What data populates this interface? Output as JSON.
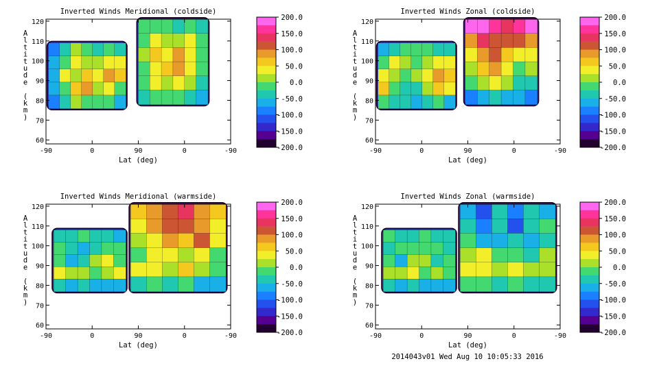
{
  "footer": {
    "stamp": "2014043v01 Wed Aug 10 10:05:33 2016"
  },
  "colorbar": {
    "ticks": [
      "200.0",
      "150.0",
      "100.0",
      "50.0",
      "0.0",
      "-50.0",
      "-100.0",
      "-150.0",
      "-200.0"
    ],
    "colors": [
      "#ff66ee",
      "#ff3399",
      "#e8355f",
      "#cc5533",
      "#e89a2a",
      "#f5c820",
      "#f2ee2a",
      "#aadf2a",
      "#44d870",
      "#20c8b0",
      "#19b0e8",
      "#1a80ff",
      "#2450ee",
      "#3328cc",
      "#550090",
      "#220030"
    ],
    "range": [
      -200,
      200
    ]
  },
  "chart_data": [
    {
      "type": "heatmap",
      "title": "Inverted Winds Meridional (coldside)",
      "xlabel": "Lat (deg)",
      "ylabel": "Altitude (km)",
      "xticks": [
        "-90",
        "0",
        "90",
        "0",
        "-90"
      ],
      "yticks": [
        "60",
        "70",
        "80",
        "90",
        "100",
        "110",
        "120"
      ],
      "ylim": [
        58,
        121
      ],
      "colorbar_range": [
        -200,
        200
      ],
      "panels": [
        {
          "x": [
            -85,
            65
          ],
          "y": [
            76,
            109
          ],
          "values": [
            [
              -80,
              -40,
              10,
              -10,
              -30,
              -20,
              -40
            ],
            [
              -60,
              0,
              40,
              20,
              10,
              40,
              30
            ],
            [
              -50,
              40,
              10,
              60,
              40,
              90,
              60
            ],
            [
              -70,
              0,
              60,
              80,
              20,
              50,
              -20
            ],
            [
              -80,
              -30,
              10,
              0,
              -10,
              -20,
              -50
            ]
          ]
        },
        {
          "x": [
            90,
            -45
          ],
          "y": [
            78,
            121
          ],
          "values": [
            [
              -20,
              0,
              -10,
              -30,
              -20,
              -40
            ],
            [
              0,
              40,
              20,
              10,
              30,
              -10
            ],
            [
              10,
              60,
              50,
              80,
              40,
              0
            ],
            [
              -10,
              50,
              70,
              90,
              30,
              -20
            ],
            [
              0,
              30,
              10,
              50,
              20,
              -30
            ],
            [
              -40,
              -20,
              -10,
              -20,
              -40,
              -60
            ]
          ]
        }
      ]
    },
    {
      "type": "heatmap",
      "title": "Inverted Winds Zonal (coldside)",
      "xlabel": "Lat (deg)",
      "ylabel": "Altitude (km)",
      "xticks": [
        "-90",
        "0",
        "90",
        "0",
        "-90"
      ],
      "yticks": [
        "60",
        "70",
        "80",
        "90",
        "100",
        "110",
        "120"
      ],
      "ylim": [
        58,
        121
      ],
      "colorbar_range": [
        -200,
        200
      ],
      "panels": [
        {
          "x": [
            -85,
            65
          ],
          "y": [
            76,
            109
          ],
          "values": [
            [
              -60,
              -40,
              -20,
              0,
              -10,
              -30,
              -40
            ],
            [
              0,
              30,
              10,
              -20,
              20,
              40,
              30
            ],
            [
              40,
              20,
              -10,
              10,
              50,
              80,
              70
            ],
            [
              60,
              0,
              -30,
              -40,
              10,
              60,
              50
            ],
            [
              -20,
              -40,
              -30,
              -60,
              -40,
              -20,
              -50
            ]
          ]
        },
        {
          "x": [
            95,
            -45
          ],
          "y": [
            78,
            121
          ],
          "values": [
            [
              200,
              180,
              160,
              150,
              170,
              180
            ],
            [
              100,
              130,
              120,
              110,
              120,
              90
            ],
            [
              40,
              90,
              110,
              60,
              30,
              50
            ],
            [
              20,
              60,
              80,
              50,
              0,
              10
            ],
            [
              -20,
              20,
              40,
              10,
              -40,
              -30
            ],
            [
              -80,
              -60,
              -40,
              -50,
              -70,
              -90
            ]
          ]
        }
      ]
    },
    {
      "type": "heatmap",
      "title": "Inverted Winds Meridional (warmside)",
      "xlabel": "Lat (deg)",
      "ylabel": "Altitude (km)",
      "xticks": [
        "-90",
        "0",
        "90",
        "0",
        "-90"
      ],
      "yticks": [
        "60",
        "70",
        "80",
        "90",
        "100",
        "110",
        "120"
      ],
      "ylim": [
        58,
        121
      ],
      "colorbar_range": [
        -200,
        200
      ],
      "panels": [
        {
          "x": [
            -75,
            65
          ],
          "y": [
            77,
            108
          ],
          "values": [
            [
              -40,
              -30,
              -20,
              -30,
              -40,
              -60
            ],
            [
              -20,
              -40,
              -70,
              -30,
              -10,
              -20
            ],
            [
              0,
              -50,
              -30,
              20,
              40,
              -10
            ],
            [
              40,
              20,
              10,
              -20,
              10,
              30
            ],
            [
              -30,
              -50,
              -40,
              -60,
              -50,
              -70
            ]
          ]
        },
        {
          "x": [
            105,
            -80
          ],
          "y": [
            77,
            121
          ],
          "values": [
            [
              60,
              90,
              120,
              130,
              100,
              60
            ],
            [
              40,
              80,
              110,
              120,
              90,
              40
            ],
            [
              20,
              50,
              90,
              70,
              110,
              30
            ],
            [
              -10,
              30,
              40,
              20,
              40,
              0
            ],
            [
              30,
              40,
              10,
              60,
              20,
              -20
            ],
            [
              -40,
              -20,
              -30,
              -10,
              -50,
              -60
            ]
          ]
        }
      ]
    },
    {
      "type": "heatmap",
      "title": "Inverted Winds Zonal (warmside)",
      "xlabel": "Lat (deg)",
      "ylabel": "Altitude (km)",
      "xticks": [
        "-90",
        "0",
        "90",
        "0",
        "-90"
      ],
      "yticks": [
        "60",
        "70",
        "80",
        "90",
        "100",
        "110",
        "120"
      ],
      "ylim": [
        58,
        121
      ],
      "colorbar_range": [
        -200,
        200
      ],
      "panels": [
        {
          "x": [
            -75,
            65
          ],
          "y": [
            77,
            108
          ],
          "values": [
            [
              -20,
              -40,
              -30,
              -10,
              -30,
              -40
            ],
            [
              -30,
              -10,
              -20,
              0,
              -20,
              -30
            ],
            [
              -10,
              -50,
              10,
              20,
              -40,
              -20
            ],
            [
              20,
              10,
              30,
              -10,
              10,
              0
            ],
            [
              -40,
              -50,
              -30,
              -50,
              -60,
              -70
            ]
          ]
        },
        {
          "x": [
            105,
            -80
          ],
          "y": [
            77,
            121
          ],
          "values": [
            [
              -60,
              -100,
              -40,
              -80,
              -30,
              -50
            ],
            [
              -40,
              -80,
              -30,
              -100,
              -40,
              -20
            ],
            [
              -20,
              -60,
              -50,
              -30,
              -60,
              -30
            ],
            [
              10,
              40,
              -10,
              0,
              -30,
              20
            ],
            [
              40,
              30,
              20,
              30,
              10,
              10
            ],
            [
              -20,
              -10,
              -30,
              -20,
              -40,
              -30
            ]
          ]
        }
      ]
    }
  ]
}
